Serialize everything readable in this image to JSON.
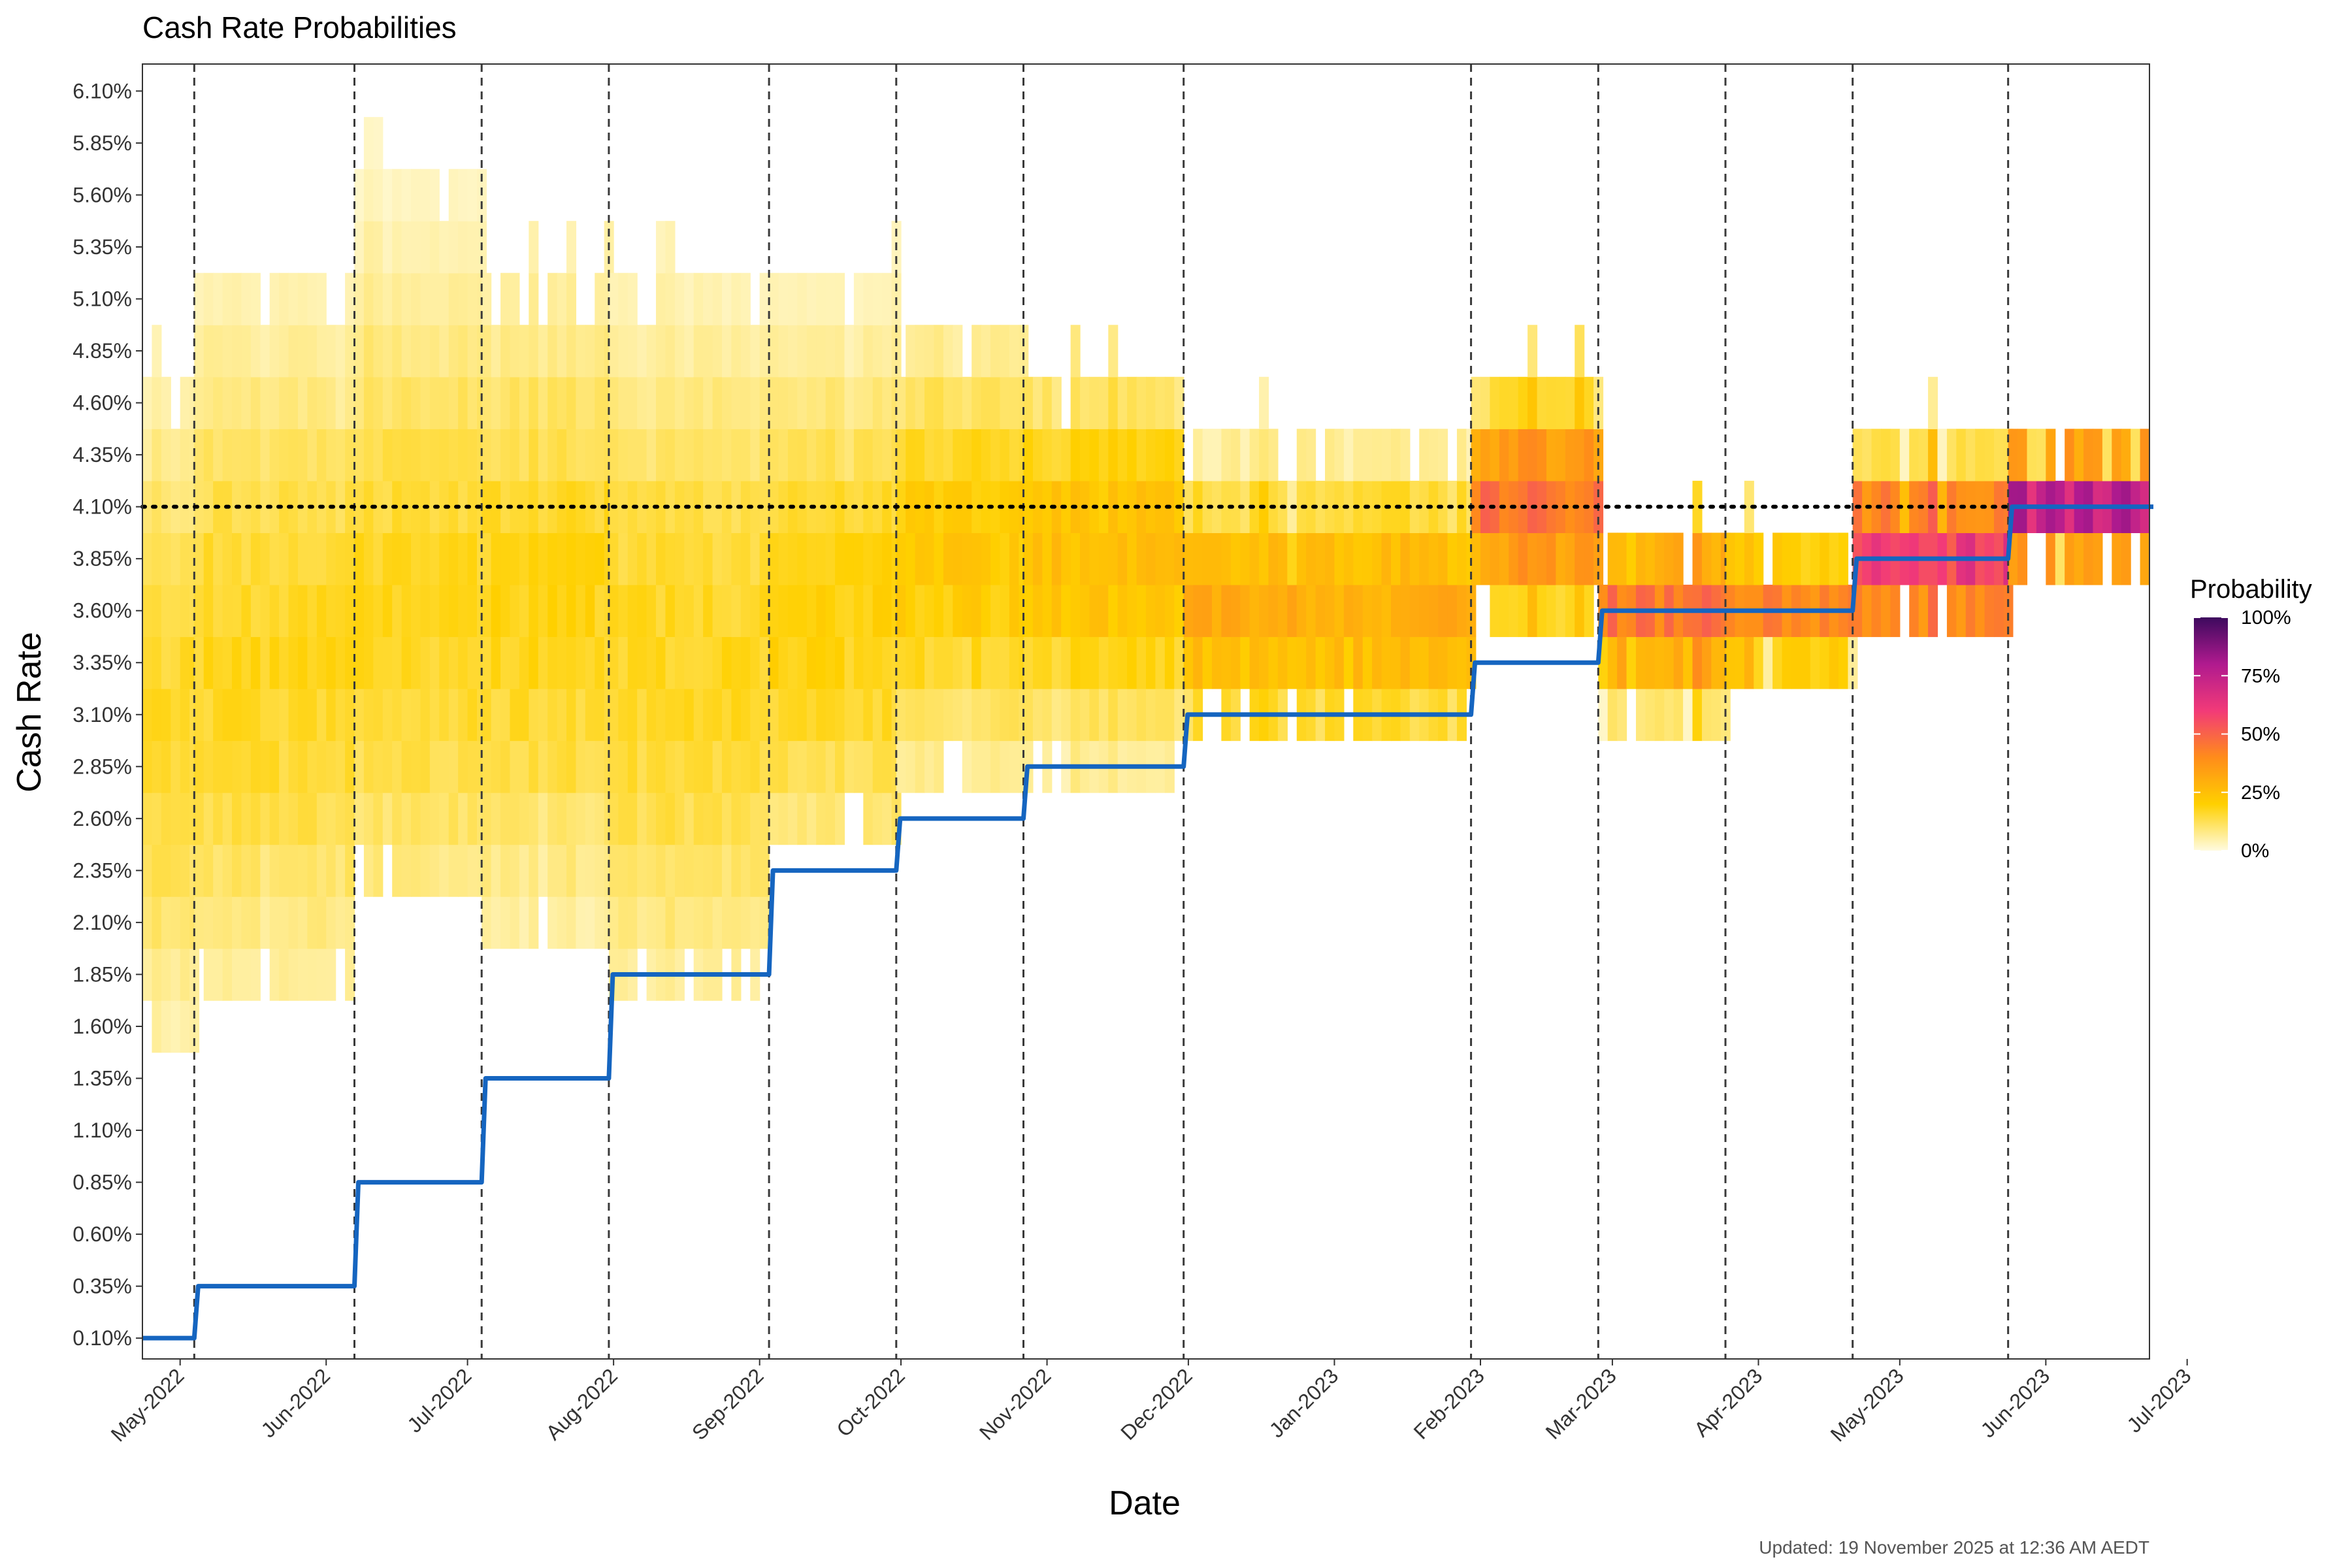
{
  "chart_data": {
    "type": "heatmap",
    "title": "Cash Rate Probabilities",
    "xlabel": "Date",
    "ylabel": "Cash Rate",
    "caption": "Updated: 19 November 2025 at 12:36 AM AEDT",
    "x_range_days": [
      -8,
      418
    ],
    "x_ticks": [
      {
        "label": "May-2022",
        "day": 0
      },
      {
        "label": "Jun-2022",
        "day": 31
      },
      {
        "label": "Jul-2022",
        "day": 61
      },
      {
        "label": "Aug-2022",
        "day": 92
      },
      {
        "label": "Sep-2022",
        "day": 123
      },
      {
        "label": "Oct-2022",
        "day": 153
      },
      {
        "label": "Nov-2022",
        "day": 184
      },
      {
        "label": "Dec-2022",
        "day": 214
      },
      {
        "label": "Jan-2023",
        "day": 245
      },
      {
        "label": "Feb-2023",
        "day": 276
      },
      {
        "label": "Mar-2023",
        "day": 304
      },
      {
        "label": "Apr-2023",
        "day": 335
      },
      {
        "label": "May-2023",
        "day": 365
      },
      {
        "label": "Jun-2023",
        "day": 396
      },
      {
        "label": "Jul-2023",
        "day": 426
      }
    ],
    "y_range": [
      0.0,
      6.23
    ],
    "y_ticks": [
      "0.10%",
      "0.35%",
      "0.60%",
      "0.85%",
      "1.10%",
      "1.35%",
      "1.60%",
      "1.85%",
      "2.10%",
      "2.35%",
      "2.60%",
      "2.85%",
      "3.10%",
      "3.35%",
      "3.60%",
      "3.85%",
      "4.10%",
      "4.35%",
      "4.60%",
      "4.85%",
      "5.10%",
      "5.35%",
      "5.60%",
      "5.85%",
      "6.10%"
    ],
    "y_tick_values": [
      0.1,
      0.35,
      0.6,
      0.85,
      1.1,
      1.35,
      1.6,
      1.85,
      2.1,
      2.35,
      2.6,
      2.85,
      3.1,
      3.35,
      3.6,
      3.85,
      4.1,
      4.35,
      4.6,
      4.85,
      5.1,
      5.35,
      5.6,
      5.85,
      6.1
    ],
    "meeting_dates_days": [
      3,
      37,
      64,
      91,
      125,
      152,
      179,
      213,
      274,
      301,
      328,
      355,
      388
    ],
    "reference_line": {
      "value": 4.1,
      "style": "dotted"
    },
    "cash_rate_series": {
      "name": "Cash rate",
      "color": "#1565C0",
      "x_days": [
        -8,
        3,
        37,
        64,
        91,
        125,
        152,
        179,
        213,
        274,
        301,
        328,
        355,
        388,
        418
      ],
      "values": [
        0.1,
        0.35,
        0.85,
        1.35,
        1.85,
        2.35,
        2.6,
        2.85,
        3.1,
        3.35,
        3.6,
        3.6,
        3.85,
        4.1,
        4.1
      ]
    },
    "heatmap_segments": [
      {
        "start_day": -8,
        "end_day": 3,
        "min_rate": 1.6,
        "max_rate": 4.6,
        "peak_rate": 3.1,
        "peak_prob": 0.16
      },
      {
        "start_day": 3,
        "end_day": 37,
        "min_rate": 1.85,
        "max_rate": 5.1,
        "peak_rate": 3.35,
        "peak_prob": 0.17
      },
      {
        "start_day": 37,
        "end_day": 64,
        "min_rate": 2.35,
        "max_rate": 5.6,
        "peak_rate": 3.6,
        "peak_prob": 0.17
      },
      {
        "start_day": 64,
        "end_day": 91,
        "min_rate": 2.1,
        "max_rate": 5.1,
        "peak_rate": 3.6,
        "peak_prob": 0.18
      },
      {
        "start_day": 91,
        "end_day": 125,
        "min_rate": 1.85,
        "max_rate": 5.1,
        "peak_rate": 3.35,
        "peak_prob": 0.17
      },
      {
        "start_day": 125,
        "end_day": 152,
        "min_rate": 2.6,
        "max_rate": 5.1,
        "peak_rate": 3.6,
        "peak_prob": 0.19
      },
      {
        "start_day": 152,
        "end_day": 179,
        "min_rate": 2.85,
        "max_rate": 4.85,
        "peak_rate": 3.85,
        "peak_prob": 0.22
      },
      {
        "start_day": 179,
        "end_day": 213,
        "min_rate": 2.85,
        "max_rate": 4.6,
        "peak_rate": 3.85,
        "peak_prob": 0.25
      },
      {
        "start_day": 213,
        "end_day": 274,
        "min_rate": 3.1,
        "max_rate": 4.35,
        "peak_rate": 3.6,
        "peak_prob": 0.3
      },
      {
        "start_day": 274,
        "end_day": 301,
        "min_rate": 3.6,
        "max_rate": 4.6,
        "peak_rate": 4.1,
        "peak_prob": 0.45
      },
      {
        "start_day": 301,
        "end_day": 328,
        "min_rate": 3.1,
        "max_rate": 3.85,
        "peak_rate": 3.6,
        "peak_prob": 0.45
      },
      {
        "start_day": 328,
        "end_day": 355,
        "min_rate": 3.35,
        "max_rate": 3.85,
        "peak_rate": 3.6,
        "peak_prob": 0.42
      },
      {
        "start_day": 355,
        "end_day": 388,
        "min_rate": 3.6,
        "max_rate": 4.35,
        "peak_rate": 3.85,
        "peak_prob": 0.6
      },
      {
        "start_day": 388,
        "end_day": 418,
        "min_rate": 3.85,
        "max_rate": 4.35,
        "peak_rate": 4.1,
        "peak_prob": 0.72
      }
    ],
    "legend": {
      "title": "Probability",
      "labels": [
        "100%",
        "75%",
        "50%",
        "25%",
        "0%"
      ],
      "label_values": [
        1.0,
        0.75,
        0.5,
        0.25,
        0.0
      ],
      "colors": [
        "#fffbe0",
        "#ffd000",
        "#ff8c1a",
        "#f23a78",
        "#b01a8f",
        "#3d0a5e"
      ]
    }
  }
}
